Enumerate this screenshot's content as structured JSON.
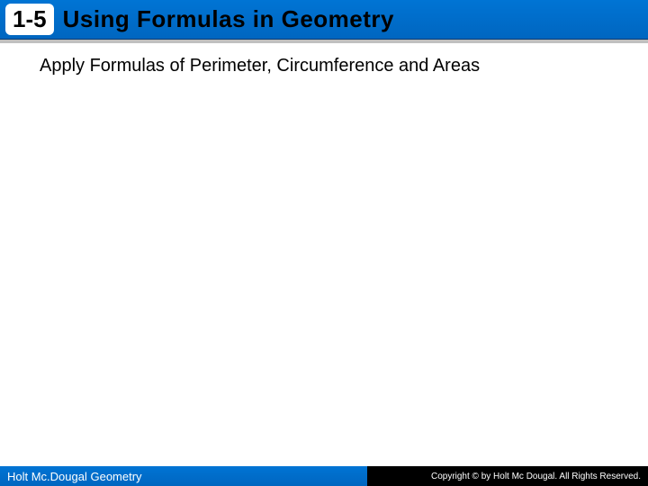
{
  "header": {
    "lesson_number": "1-5",
    "title": "Using Formulas in Geometry"
  },
  "content": {
    "subtitle": "Apply Formulas of  Perimeter, Circumference and Areas"
  },
  "footer": {
    "left_text": "Holt Mc.Dougal Geometry",
    "right_text": "Copyright © by Holt Mc Dougal. All Rights Reserved."
  },
  "colors": {
    "header_bg_top": "#0074d4",
    "header_bg_bottom": "#0066c0",
    "badge_bg": "#ffffff",
    "badge_text": "#000000",
    "title_text": "#000000",
    "footer_left_bg": "#0066c0",
    "footer_right_bg": "#000000",
    "footer_text": "#ffffff",
    "body_bg": "#ffffff"
  }
}
